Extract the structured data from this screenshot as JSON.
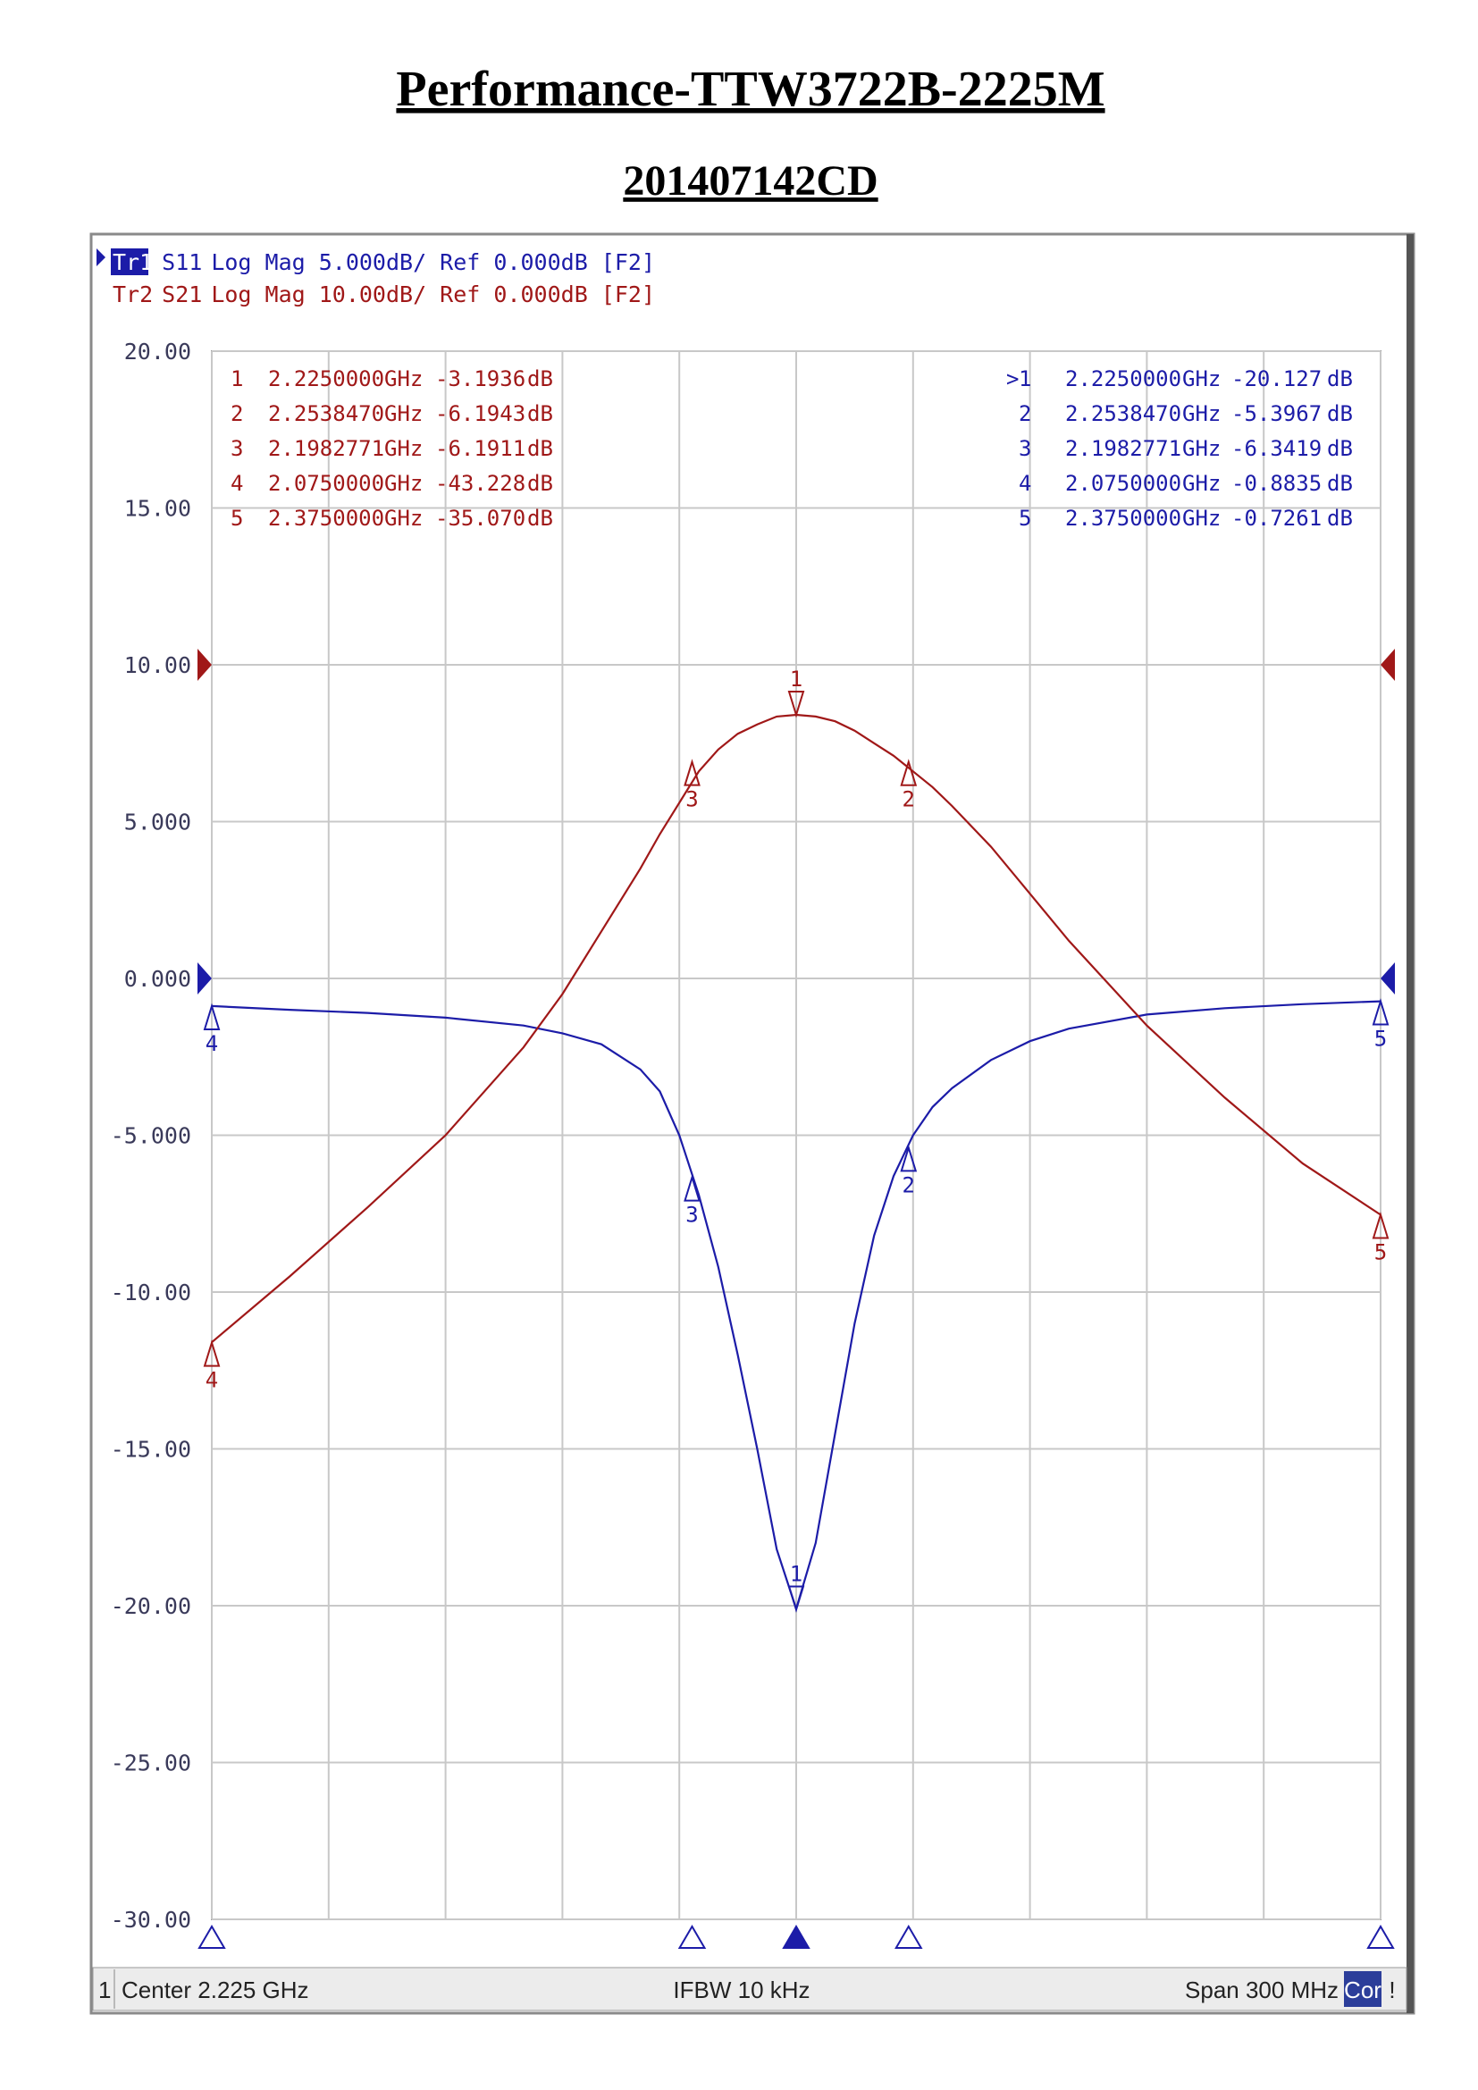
{
  "chart_data": {
    "type": "line",
    "title": "Performance-TTW3722B-2225M",
    "subtitle": "201407142CD",
    "x": [
      2.075,
      2.095,
      2.115,
      2.135,
      2.155,
      2.165,
      2.175,
      2.185,
      2.19,
      2.195,
      2.2,
      2.205,
      2.21,
      2.215,
      2.22,
      2.225,
      2.23,
      2.235,
      2.24,
      2.245,
      2.25,
      2.255,
      2.26,
      2.265,
      2.275,
      2.285,
      2.295,
      2.315,
      2.335,
      2.355,
      2.375
    ],
    "xlim": [
      2.075,
      2.375
    ],
    "xticks": [
      2.075,
      2.105,
      2.135,
      2.165,
      2.195,
      2.225,
      2.255,
      2.285,
      2.315,
      2.345,
      2.375
    ],
    "ylim": [
      -30,
      20
    ],
    "yticks": [
      {
        "value": 20,
        "label": "20.00"
      },
      {
        "value": 15,
        "label": "15.00"
      },
      {
        "value": 10,
        "label": "10.00"
      },
      {
        "value": 5,
        "label": "5.000"
      },
      {
        "value": 0,
        "label": "0.000"
      },
      {
        "value": -5,
        "label": "-5.000"
      },
      {
        "value": -10,
        "label": "-10.00"
      },
      {
        "value": -15,
        "label": "-15.00"
      },
      {
        "value": -20,
        "label": "-20.00"
      },
      {
        "value": -25,
        "label": "-25.00"
      },
      {
        "value": -30,
        "label": "-30.00"
      }
    ],
    "y2lim": [
      -80,
      20
    ],
    "grid": true,
    "unit_x": "GHz",
    "unit_y": "dB",
    "series": [
      {
        "name": "S11",
        "trace": "Tr1",
        "format": "Log Mag 5.000dB/ Ref 0.000dB [F2]",
        "color": "#1c1ca8",
        "ref": 0,
        "active_prefix": ">",
        "values": [
          -0.88,
          -1.0,
          -1.1,
          -1.25,
          -1.5,
          -1.75,
          -2.1,
          -2.9,
          -3.6,
          -5.0,
          -6.9,
          -9.2,
          -12.0,
          -15.0,
          -18.2,
          -20.1,
          -18.0,
          -14.5,
          -11.0,
          -8.2,
          -6.3,
          -5.0,
          -4.1,
          -3.5,
          -2.6,
          -2.0,
          -1.6,
          -1.15,
          -0.95,
          -0.82,
          -0.73
        ],
        "markers": [
          {
            "id": "1",
            "x": {
              "value": 2.225,
              "label": "2.2250000"
            },
            "y": -20.127
          },
          {
            "id": "2",
            "x": {
              "value": 2.253847,
              "label": "2.2538470"
            },
            "y": -5.3967
          },
          {
            "id": "3",
            "x": 2.1982771,
            "y": -6.3419
          },
          {
            "id": "4",
            "x": {
              "value": 2.075,
              "label": "2.0750000"
            },
            "y": -0.8835
          },
          {
            "id": "5",
            "x": {
              "value": 2.375,
              "label": "2.3750000"
            },
            "y": -0.7261
          }
        ]
      },
      {
        "name": "S21",
        "trace": "Tr2",
        "format": "Log Mag 10.00dB/ Ref 0.000dB [F2]",
        "color": "#a01818",
        "ref": 0,
        "axis": "y2",
        "values": [
          -43.2,
          -39.0,
          -34.6,
          -30.0,
          -24.4,
          -21.0,
          -17.0,
          -13.0,
          -10.8,
          -8.8,
          -6.8,
          -5.4,
          -4.4,
          -3.8,
          -3.3,
          -3.19,
          -3.3,
          -3.6,
          -4.2,
          -5.0,
          -5.8,
          -6.8,
          -7.8,
          -9.0,
          -11.6,
          -14.6,
          -17.6,
          -23.0,
          -27.6,
          -31.8,
          -35.07
        ],
        "markers": [
          {
            "id": "1",
            "x": {
              "value": 2.225,
              "label": "2.2250000"
            },
            "y": -3.1936
          },
          {
            "id": "2",
            "x": {
              "value": 2.253847,
              "label": "2.2538470"
            },
            "y": -6.1943
          },
          {
            "id": "3",
            "x": 2.1982771,
            "y": -6.1911
          },
          {
            "id": "4",
            "x": {
              "value": 2.075,
              "label": "2.0750000"
            },
            "y": -43.228
          },
          {
            "id": "5",
            "x": {
              "value": 2.375,
              "label": "2.3750000"
            },
            "y": {
              "value": -35.07,
              "label": "-35.070"
            }
          }
        ]
      }
    ],
    "status": {
      "channel": "1",
      "center": "Center 2.225 GHz",
      "ifbw": "IFBW 10 kHz",
      "span": "Span 300 MHz",
      "cor": "Cor",
      "warn": "!"
    }
  }
}
